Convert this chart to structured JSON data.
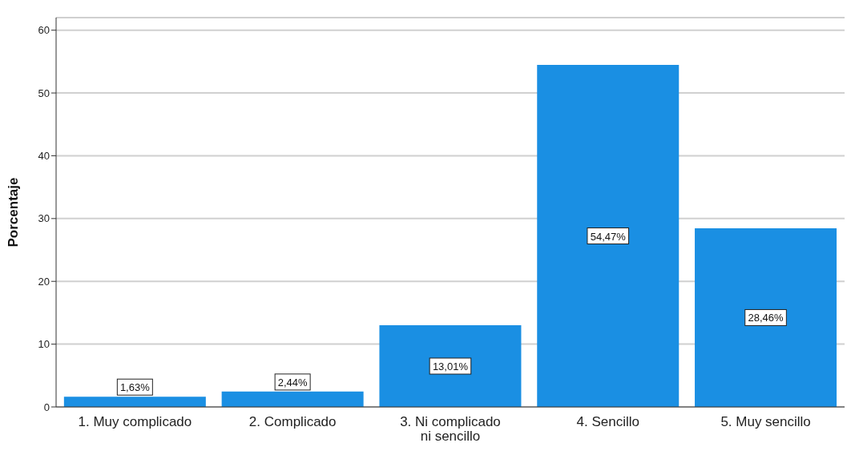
{
  "chart_data": {
    "type": "bar",
    "ylabel": "Porcentaje",
    "categories": [
      "1. Muy complicado",
      "2. Complicado",
      "3. Ni complicado ni sencillo",
      "4. Sencillo",
      "5. Muy sencillo"
    ],
    "values": [
      1.63,
      2.44,
      13.01,
      54.47,
      28.46
    ],
    "value_labels": [
      "1,63%",
      "2,44%",
      "13,01%",
      "54,47%",
      "28,46%"
    ],
    "color": "#1a8fe3",
    "ylim": [
      0,
      62
    ],
    "yticks": [
      0,
      10,
      20,
      30,
      40,
      50,
      60
    ],
    "grid": "y"
  }
}
